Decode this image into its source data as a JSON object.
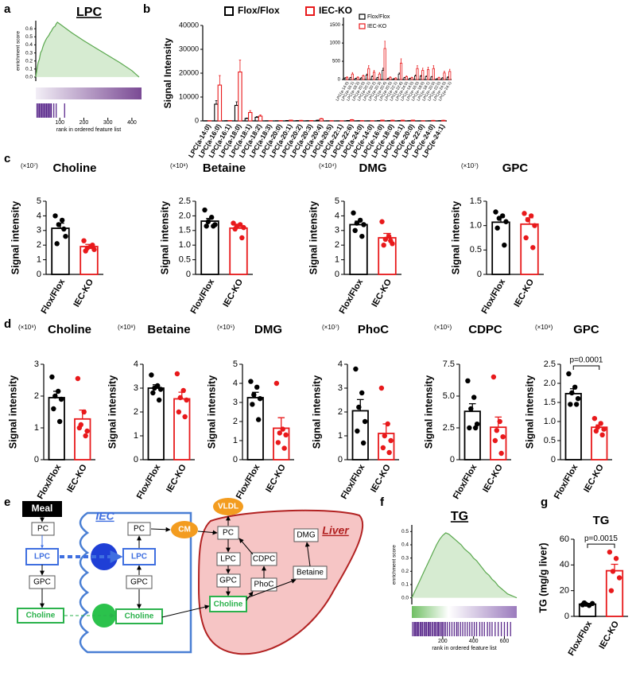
{
  "chart_data": [
    {
      "type": "gsea",
      "panel": "a",
      "title": "LPC",
      "xlabel": "rank in ordered feature list",
      "ylabel": "enrichment score",
      "x": [
        0,
        5,
        10,
        15,
        20,
        25,
        30,
        35,
        40,
        45,
        50,
        55,
        60,
        65,
        70,
        75,
        80,
        85,
        90,
        100,
        150,
        200,
        250,
        300,
        350,
        400,
        430
      ],
      "values": [
        0,
        0.1,
        0.18,
        0.22,
        0.3,
        0.33,
        0.38,
        0.42,
        0.45,
        0.48,
        0.5,
        0.52,
        0.55,
        0.57,
        0.6,
        0.62,
        0.63,
        0.66,
        0.68,
        0.66,
        0.55,
        0.45,
        0.36,
        0.27,
        0.18,
        0.08,
        0
      ],
      "hits": [
        5,
        10,
        15,
        20,
        25,
        30,
        35,
        40,
        45,
        50,
        55,
        60,
        65,
        75,
        85,
        120
      ],
      "xlim": [
        0,
        440
      ],
      "xticks": [
        100,
        200,
        300,
        400
      ],
      "ylim": [
        -0.05,
        0.7
      ],
      "yticks": [
        {
          "value": 0,
          "label": "0.0"
        },
        0.1,
        0.2,
        0.3,
        0.4,
        0.5,
        0.6
      ],
      "color": "#5aa84e"
    },
    {
      "type": "grouped_bar",
      "panel": "b",
      "ylabel": "Signal Intensity",
      "categories": [
        "LPC(a-14:0)",
        "LPC(a-16:0)",
        "LPC(a-16:1)",
        "LPC(a-18:0)",
        "LPC(a-18:1)",
        "LPC(a-18:2)",
        "LPC(a-18:3)",
        "LPC(a-20:0)",
        "LPC(a-20:1)",
        "LPC(a-20:2)",
        "LPC(a-20:3)",
        "LPC(a-20:4)",
        "LPC(a-20:5)",
        "LPC(a-22:1)",
        "LPC(a-22:6)",
        "LPC(a-24:0)",
        "LPC(e-14:0)",
        "LPC(e-16:0)",
        "LPC(e-18:0)",
        "LPC(e-18:1)",
        "LPC(e-20:0)",
        "LPC(e-22:0)",
        "LPC(e-24:0)",
        "LPC(e-24:1)"
      ],
      "series": [
        {
          "name": "Flox/Flox",
          "color": "#000000",
          "values": [
            40,
            7000,
            50,
            6500,
            1000,
            1500,
            30,
            40,
            120,
            80,
            50,
            250,
            30,
            20,
            150,
            50,
            30,
            100,
            90,
            80,
            70,
            20,
            40,
            60
          ],
          "errors": [
            10,
            1500,
            10,
            1500,
            200,
            300,
            8,
            10,
            30,
            20,
            10,
            60,
            8,
            5,
            30,
            10,
            8,
            25,
            20,
            20,
            15,
            5,
            10,
            15
          ]
        },
        {
          "name": "IEC-KO",
          "color": "#e8191b",
          "values": [
            60,
            15000,
            150,
            20500,
            3500,
            2000,
            60,
            100,
            300,
            200,
            150,
            850,
            60,
            40,
            450,
            80,
            50,
            300,
            250,
            270,
            300,
            50,
            180,
            220
          ],
          "errors": [
            15,
            4000,
            40,
            5000,
            800,
            500,
            15,
            25,
            80,
            50,
            40,
            200,
            15,
            10,
            120,
            20,
            15,
            80,
            60,
            70,
            80,
            15,
            50,
            60
          ]
        }
      ],
      "ylim": [
        0,
        40000
      ],
      "yticks": [
        0,
        10000,
        20000,
        30000,
        40000
      ],
      "inset": {
        "categories": [
          "LPC(a-14:0)",
          "LPC(a-16:1)",
          "LPC(a-18:3)",
          "LPC(a-20:0)",
          "LPC(a-20:1)",
          "LPC(a-20:2)",
          "LPC(a-20:3)",
          "LPC(a-20:4)",
          "LPC(a-20:5)",
          "LPC(a-22:1)",
          "LPC(a-22:6)",
          "LPC(a-24:0)",
          "LPC(e-14:0)",
          "LPC(e-16:0)",
          "LPC(e-18:0)",
          "LPC(e-18:1)",
          "LPC(e-20:0)",
          "LPC(e-22:0)",
          "LPC(e-24:0)",
          "LPC(e-24:1)"
        ],
        "series": [
          {
            "name": "Flox/Flox",
            "color": "#000000",
            "values": [
              40,
              50,
              30,
              40,
              120,
              80,
              50,
              250,
              30,
              20,
              150,
              50,
              30,
              100,
              90,
              80,
              70,
              20,
              40,
              60
            ],
            "errors": [
              10,
              10,
              8,
              10,
              30,
              20,
              10,
              60,
              8,
              5,
              30,
              10,
              8,
              25,
              20,
              20,
              15,
              5,
              10,
              15
            ]
          },
          {
            "name": "IEC-KO",
            "color": "#e8191b",
            "values": [
              60,
              150,
              60,
              100,
              300,
              200,
              150,
              850,
              60,
              40,
              450,
              80,
              50,
              300,
              250,
              270,
              300,
              50,
              180,
              220
            ],
            "errors": [
              15,
              40,
              15,
              25,
              80,
              50,
              40,
              200,
              15,
              10,
              120,
              20,
              15,
              80,
              60,
              70,
              80,
              15,
              50,
              60
            ]
          }
        ],
        "ylim": [
          0,
          1700
        ],
        "yticks": [
          0,
          500,
          1000,
          1500
        ]
      }
    },
    {
      "type": "bar",
      "panel": "c",
      "title": "Choline",
      "scale_label": "(×10⁷)",
      "ylabel": "Signal intensity",
      "categories": [
        "Flox/Flox",
        "IEC-KO"
      ],
      "values": [
        3.15,
        1.9
      ],
      "errors": [
        0.35,
        0.15
      ],
      "points": [
        [
          4.0,
          3.7,
          3.4,
          2.6,
          2.1,
          3.1
        ],
        [
          2.3,
          1.9,
          1.8,
          1.7,
          1.6,
          2.0
        ]
      ],
      "colors": [
        "#000000",
        "#e8191b"
      ],
      "ylim": [
        0,
        5
      ],
      "yticks": [
        0,
        1,
        2,
        3,
        4,
        5
      ]
    },
    {
      "type": "bar",
      "title": "Betaine",
      "scale_label": "(×10⁸)",
      "ylabel": "Signal intensity",
      "categories": [
        "Flox/Flox",
        "IEC-KO"
      ],
      "values": [
        1.82,
        1.58
      ],
      "errors": [
        0.09,
        0.07
      ],
      "points": [
        [
          2.2,
          1.95,
          1.8,
          1.7,
          1.65,
          1.65
        ],
        [
          1.75,
          1.7,
          1.65,
          1.6,
          1.55,
          1.25
        ]
      ],
      "colors": [
        "#000000",
        "#e8191b"
      ],
      "ylim": [
        0,
        2.5
      ],
      "yticks": [
        0,
        0.5,
        {
          "value": 1,
          "label": "1.0"
        },
        1.5,
        {
          "value": 2,
          "label": "2.0"
        },
        2.5
      ]
    },
    {
      "type": "bar",
      "title": "DMG",
      "scale_label": "(×10⁴)",
      "ylabel": "Signal intensity",
      "categories": [
        "Flox/Flox",
        "IEC-KO"
      ],
      "values": [
        3.4,
        2.5
      ],
      "errors": [
        0.24,
        0.3
      ],
      "points": [
        [
          4.2,
          3.7,
          3.5,
          3.4,
          3.0,
          2.6
        ],
        [
          3.6,
          2.6,
          2.4,
          2.1,
          2.0,
          2.3
        ]
      ],
      "colors": [
        "#000000",
        "#e8191b"
      ],
      "ylim": [
        0,
        5
      ],
      "yticks": [
        0,
        1,
        2,
        3,
        4,
        5
      ]
    },
    {
      "type": "bar",
      "title": "GPC",
      "scale_label": "(×10⁷)",
      "ylabel": "Signal intensity",
      "categories": [
        "Flox/Flox",
        "IEC-KO"
      ],
      "values": [
        1.07,
        1.03
      ],
      "errors": [
        0.1,
        0.13
      ],
      "points": [
        [
          1.28,
          1.2,
          1.15,
          1.08,
          0.95,
          0.6
        ],
        [
          1.25,
          1.2,
          1.12,
          1.0,
          0.75,
          0.55
        ]
      ],
      "colors": [
        "#000000",
        "#e8191b"
      ],
      "ylim": [
        0,
        1.5
      ],
      "yticks": [
        0,
        0.5,
        {
          "value": 1,
          "label": "1.0"
        },
        1.5
      ]
    },
    {
      "type": "bar",
      "panel": "d",
      "title": "Choline",
      "scale_label": "(×10⁸)",
      "ylabel": "Signal intensity",
      "categories": [
        "Flox/Flox",
        "IEC-KO"
      ],
      "values": [
        1.95,
        1.28
      ],
      "errors": [
        0.2,
        0.28
      ],
      "points": [
        [
          2.6,
          2.15,
          2.0,
          1.9,
          1.6,
          1.2
        ],
        [
          2.55,
          1.5,
          1.1,
          0.9,
          1.0,
          0.75
        ]
      ],
      "colors": [
        "#000000",
        "#e8191b"
      ],
      "ylim": [
        0,
        3
      ],
      "yticks": [
        0,
        1,
        2,
        3
      ]
    },
    {
      "type": "bar",
      "title": "Betaine",
      "scale_label": "(×10⁸)",
      "ylabel": "Signal intensity",
      "categories": [
        "Flox/Flox",
        "IEC-KO"
      ],
      "values": [
        3.0,
        2.55
      ],
      "errors": [
        0.14,
        0.28
      ],
      "points": [
        [
          3.55,
          3.1,
          3.0,
          2.95,
          2.8,
          2.5
        ],
        [
          3.6,
          2.9,
          2.6,
          2.5,
          2.0,
          1.8
        ]
      ],
      "colors": [
        "#000000",
        "#e8191b"
      ],
      "ylim": [
        0,
        4
      ],
      "yticks": [
        0,
        1,
        2,
        3,
        4
      ]
    },
    {
      "type": "bar",
      "title": "DMG",
      "scale_label": "(×10⁵)",
      "ylabel": "Signal intensity",
      "categories": [
        "Flox/Flox",
        "IEC-KO"
      ],
      "values": [
        3.25,
        1.65
      ],
      "errors": [
        0.28,
        0.55
      ],
      "points": [
        [
          4.1,
          3.8,
          3.4,
          3.2,
          2.9,
          2.1
        ],
        [
          4.0,
          1.6,
          1.4,
          1.3,
          0.9,
          0.6
        ]
      ],
      "colors": [
        "#000000",
        "#e8191b"
      ],
      "ylim": [
        0,
        5
      ],
      "yticks": [
        0,
        1,
        2,
        3,
        4,
        5
      ]
    },
    {
      "type": "bar",
      "title": "PhoC",
      "scale_label": "(×10⁷)",
      "ylabel": "Signal intensity",
      "categories": [
        "Flox/Flox",
        "IEC-KO"
      ],
      "values": [
        2.05,
        1.1
      ],
      "errors": [
        0.47,
        0.4
      ],
      "points": [
        [
          3.8,
          2.8,
          2.2,
          1.6,
          1.2,
          0.7
        ],
        [
          3.0,
          1.5,
          1.0,
          0.8,
          0.5,
          0.3
        ]
      ],
      "colors": [
        "#000000",
        "#e8191b"
      ],
      "ylim": [
        0,
        4
      ],
      "yticks": [
        0,
        1,
        2,
        3,
        4
      ]
    },
    {
      "type": "bar",
      "title": "CDPC",
      "scale_label": "(×10⁵)",
      "ylabel": "Signal intensity",
      "categories": [
        "Flox/Flox",
        "IEC-KO"
      ],
      "values": [
        3.8,
        2.55
      ],
      "errors": [
        0.6,
        0.8
      ],
      "points": [
        [
          6.2,
          4.9,
          4.0,
          2.8,
          2.5,
          2.5
        ],
        [
          6.5,
          3.0,
          2.3,
          1.8,
          1.5,
          0.5
        ]
      ],
      "colors": [
        "#000000",
        "#e8191b"
      ],
      "ylim": [
        0,
        7.5
      ],
      "yticks": [
        0,
        2.5,
        {
          "value": 5,
          "label": "5.0"
        },
        7.5
      ]
    },
    {
      "type": "bar",
      "title": "GPC",
      "scale_label": "(×10⁸)",
      "ylabel": "Signal intensity",
      "categories": [
        "Flox/Flox",
        "IEC-KO"
      ],
      "values": [
        1.73,
        0.85
      ],
      "errors": [
        0.13,
        0.06
      ],
      "points": [
        [
          2.25,
          1.9,
          1.75,
          1.6,
          1.45,
          1.45
        ],
        [
          1.08,
          0.95,
          0.85,
          0.8,
          0.75,
          0.65
        ]
      ],
      "colors": [
        "#000000",
        "#e8191b"
      ],
      "ylim": [
        0,
        2.5
      ],
      "yticks": [
        0,
        0.5,
        {
          "value": 1,
          "label": "1.0"
        },
        1.5,
        {
          "value": 2,
          "label": "2.0"
        },
        2.5
      ],
      "annotation": "p=0.0001"
    },
    {
      "type": "gsea",
      "panel": "f",
      "title": "TG",
      "xlabel": "rank in ordered feature list",
      "ylabel": "enrichment score",
      "x": [
        0,
        20,
        40,
        60,
        80,
        100,
        120,
        140,
        160,
        180,
        200,
        220,
        240,
        260,
        280,
        300,
        320,
        340,
        360,
        380,
        400,
        420,
        440,
        460,
        480,
        500,
        520,
        540,
        560,
        580,
        600,
        620,
        640,
        660,
        680
      ],
      "values": [
        0,
        0.05,
        0.1,
        0.15,
        0.2,
        0.25,
        0.3,
        0.35,
        0.4,
        0.44,
        0.47,
        0.49,
        0.48,
        0.46,
        0.44,
        0.42,
        0.4,
        0.37,
        0.35,
        0.33,
        0.3,
        0.28,
        0.25,
        0.22,
        0.19,
        0.17,
        0.14,
        0.12,
        0.09,
        0.07,
        0.05,
        0.03,
        0.02,
        0.01,
        0
      ],
      "hits": [
        5,
        15,
        22,
        30,
        38,
        45,
        55,
        62,
        70,
        80,
        88,
        95,
        105,
        112,
        120,
        130,
        138,
        148,
        155,
        165,
        172,
        180,
        190,
        198,
        208,
        218,
        230,
        245,
        260,
        275,
        290,
        300,
        315,
        330,
        345,
        360,
        375,
        390,
        405,
        420,
        440,
        455,
        470,
        490,
        505,
        520,
        540,
        560,
        580,
        600,
        620,
        640
      ],
      "xlim": [
        0,
        680
      ],
      "xticks": [
        200,
        400,
        600
      ],
      "ylim": [
        -0.05,
        0.55
      ],
      "yticks": [
        {
          "value": 0,
          "label": "0.0"
        },
        0.1,
        0.2,
        0.3,
        0.4,
        0.5
      ],
      "color": "#5aa84e"
    },
    {
      "type": "bar",
      "panel": "g",
      "title": "TG",
      "ylabel": "TG (mg/g liver)",
      "categories": [
        "Flox/Flox",
        "IEC-KO"
      ],
      "values": [
        9.5,
        35.5
      ],
      "errors": [
        0.5,
        5
      ],
      "points": [
        [
          9,
          8.5,
          9.5,
          10,
          10.5
        ],
        [
          50,
          45,
          35,
          30,
          20
        ]
      ],
      "colors": [
        "#000000",
        "#e8191b"
      ],
      "ylim": [
        0,
        60
      ],
      "yticks": [
        0,
        20,
        40,
        60
      ],
      "annotation": "p=0.0015"
    }
  ],
  "diagram": {
    "panel": "e",
    "nodes": [
      {
        "label": "Meal"
      },
      {
        "label": "PC"
      },
      {
        "label": "LPC"
      },
      {
        "label": "GPC"
      },
      {
        "label": "Choline"
      },
      {
        "label": "IEC"
      },
      {
        "label": "PC"
      },
      {
        "label": "LPC"
      },
      {
        "label": "GPC"
      },
      {
        "label": "Choline"
      },
      {
        "label": "CM"
      },
      {
        "label": "VLDL"
      },
      {
        "label": "PC"
      },
      {
        "label": "LPC"
      },
      {
        "label": "GPC"
      },
      {
        "label": "Choline"
      },
      {
        "label": "CDPC"
      },
      {
        "label": "PhoC"
      },
      {
        "label": "Betaine"
      },
      {
        "label": "DMG"
      },
      {
        "label": "Liver"
      }
    ]
  }
}
